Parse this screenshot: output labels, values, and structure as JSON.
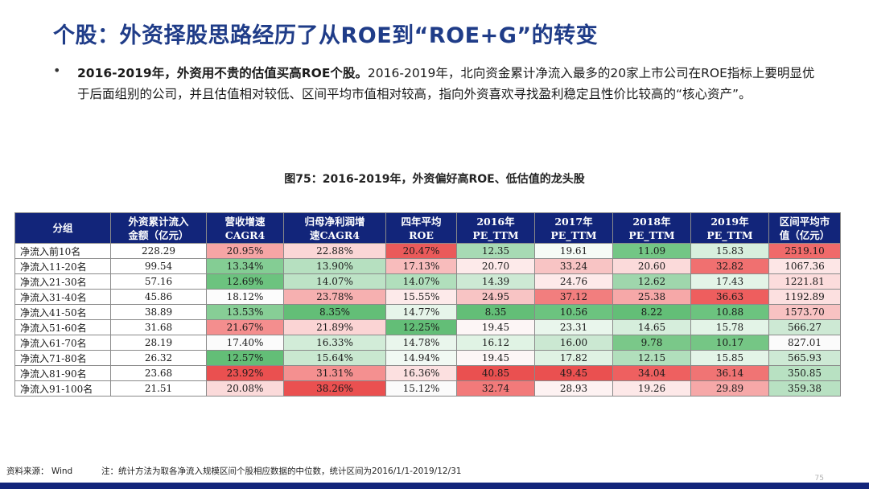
{
  "title": "个股：外资择股思路经历了从ROE到“ROE+G”的转变",
  "bullet": {
    "bold": "2016-2019年，外资用不贵的估值买高ROE个股。",
    "text": "2016-2019年，北向资金累计净流入最多的20家上市公司在ROE指标上要明显优于后面组别的公司，并且估值相对较低、区间平均市值相对较高，指向外资喜欢寻找盈利稳定且性价比较高的“核心资产”。"
  },
  "figure_title": "图75：2016-2019年，外资偏好高ROE、低估值的龙头股",
  "table": {
    "headers": [
      "分组",
      "外资累计流入\n金额（亿元）",
      "营收增速\nCAGR4",
      "归母净利润增\n速CAGR4",
      "四年平均\nROE",
      "2016年\nPE_TTM",
      "2017年\nPE_TTM",
      "2018年\nPE_TTM",
      "2019年\nPE_TTM",
      "区间平均市\n值（亿元）"
    ],
    "rows": [
      [
        "净流入前10名",
        "228.29",
        "20.95%",
        "22.88%",
        "20.47%",
        "12.35",
        "19.61",
        "11.09",
        "15.83",
        "2519.10"
      ],
      [
        "净流入11-20名",
        "99.54",
        "13.34%",
        "13.90%",
        "17.13%",
        "20.70",
        "33.24",
        "20.60",
        "32.82",
        "1067.36"
      ],
      [
        "净流入21-30名",
        "57.16",
        "12.69%",
        "14.07%",
        "14.07%",
        "14.39",
        "24.76",
        "12.62",
        "17.43",
        "1221.81"
      ],
      [
        "净流入31-40名",
        "45.86",
        "18.12%",
        "23.78%",
        "15.55%",
        "24.95",
        "37.12",
        "25.38",
        "36.63",
        "1192.89"
      ],
      [
        "净流入41-50名",
        "38.89",
        "13.53%",
        "8.35%",
        "14.77%",
        "8.35",
        "10.56",
        "8.22",
        "10.88",
        "1573.70"
      ],
      [
        "净流入51-60名",
        "31.68",
        "21.67%",
        "21.89%",
        "12.25%",
        "19.45",
        "23.31",
        "14.65",
        "15.78",
        "566.27"
      ],
      [
        "净流入61-70名",
        "28.19",
        "17.40%",
        "16.33%",
        "14.78%",
        "16.12",
        "16.00",
        "9.78",
        "10.17",
        "827.01"
      ],
      [
        "净流入71-80名",
        "26.32",
        "12.57%",
        "15.64%",
        "14.94%",
        "19.45",
        "17.82",
        "12.15",
        "15.85",
        "565.93"
      ],
      [
        "净流入81-90名",
        "23.68",
        "23.92%",
        "31.31%",
        "16.36%",
        "40.85",
        "49.45",
        "34.04",
        "36.14",
        "350.85"
      ],
      [
        "净流入91-100名",
        "21.51",
        "20.08%",
        "38.26%",
        "15.12%",
        "32.74",
        "28.93",
        "19.26",
        "29.89",
        "359.38"
      ]
    ],
    "cell_colors": [
      [
        "#ffffff",
        "#ffffff",
        "#f6a5a5",
        "#fbd6d6",
        "#ea5a5a",
        "#a7dab4",
        "#f5fbf6",
        "#73c685",
        "#d7efdd",
        "#f06a6a"
      ],
      [
        "#ffffff",
        "#ffffff",
        "#84cd94",
        "#b6e0c0",
        "#f8bcbc",
        "#fdeaea",
        "#f8c4c4",
        "#fbdada",
        "#f07070",
        "#fde6e6"
      ],
      [
        "#ffffff",
        "#ffffff",
        "#6cc37f",
        "#bde3c6",
        "#b1dfbc",
        "#cde9d4",
        "#fdeaea",
        "#9fd6ac",
        "#e3f4e7",
        "#fcdcdc"
      ],
      [
        "#ffffff",
        "#ffffff",
        "#fcfcfc",
        "#f6b0b0",
        "#fdeaea",
        "#f8c4c4",
        "#f27e7e",
        "#f6a8a8",
        "#ee5e5e",
        "#fce0e0"
      ],
      [
        "#ffffff",
        "#ffffff",
        "#87ce96",
        "#63be77",
        "#e6f5ea",
        "#63be77",
        "#6cc37f",
        "#63be77",
        "#6cc37f",
        "#f8c2c2"
      ],
      [
        "#ffffff",
        "#ffffff",
        "#f48e8e",
        "#fbd4d4",
        "#63be77",
        "#fdf6f6",
        "#e9f6ec",
        "#d6eedc",
        "#e3f4e7",
        "#cde9d4"
      ],
      [
        "#ffffff",
        "#ffffff",
        "#fbfbfb",
        "#d2ecd8",
        "#e9f6ec",
        "#e0f3e4",
        "#cbe8d2",
        "#7ac889",
        "#75c685",
        "#fbfbfb"
      ],
      [
        "#ffffff",
        "#ffffff",
        "#63be77",
        "#c9e8d0",
        "#f1f9f3",
        "#fdf6f6",
        "#dff2e3",
        "#b1dfbc",
        "#e3f4e7",
        "#cde9d4"
      ],
      [
        "#ffffff",
        "#ffffff",
        "#ea5050",
        "#f49090",
        "#fce0e0",
        "#ea5050",
        "#ea5050",
        "#ee6060",
        "#f07474",
        "#b8e1c2"
      ],
      [
        "#ffffff",
        "#ffffff",
        "#fbdada",
        "#ea5050",
        "#fbfbfb",
        "#f27a7a",
        "#fdf2f2",
        "#fde8e8",
        "#f6a8a8",
        "#b8e1c2"
      ]
    ]
  },
  "footer": {
    "source": "资料来源： Wind",
    "note": "注：统计方法为取各净流入规模区间个股相应数据的中位数，统计区间为2016/1/1-2019/12/31"
  },
  "page_number": "75"
}
